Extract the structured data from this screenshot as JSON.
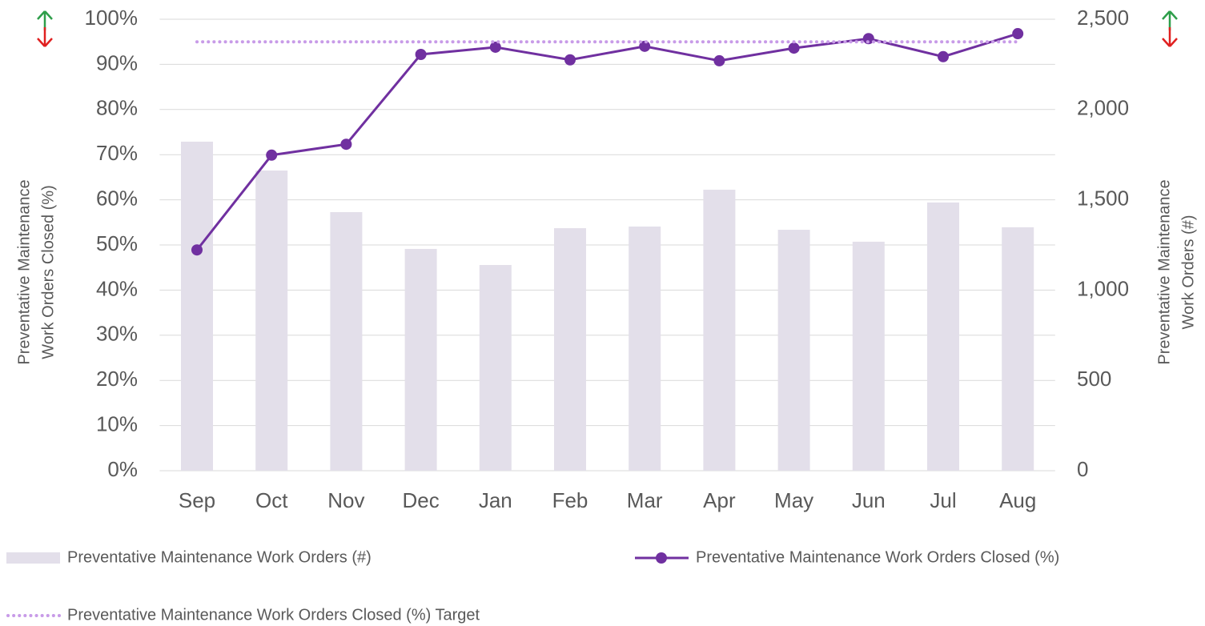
{
  "chart_data": {
    "type": "bar-line",
    "categories": [
      "Sep",
      "Oct",
      "Nov",
      "Dec",
      "Jan",
      "Feb",
      "Mar",
      "Apr",
      "May",
      "Jun",
      "Jul",
      "Aug"
    ],
    "series": [
      {
        "name": "Preventative Maintenance Work Orders (#)",
        "type": "bar",
        "axis": "y2",
        "color": "#e3dfea",
        "values": [
          1822,
          1662,
          1432,
          1228,
          1139,
          1343,
          1352,
          1556,
          1334,
          1268,
          1485,
          1348
        ]
      },
      {
        "name": "Preventative Maintenance Work Orders Closed (%)",
        "type": "line",
        "color": "#7030a0",
        "values": [
          48.9,
          69.9,
          72.3,
          92.2,
          93.8,
          91.0,
          94.0,
          90.8,
          93.6,
          95.7,
          91.7,
          96.8
        ]
      },
      {
        "name": "Preventative Maintenance Work Orders Closed (%) Target",
        "type": "dotted",
        "color": "#c89be8",
        "values": [
          95,
          95,
          95,
          95,
          95,
          95,
          95,
          95,
          95,
          95,
          95,
          95
        ]
      }
    ],
    "y_label": [
      "Preventative Maintenance",
      "Work Orders Closed (%)"
    ],
    "y2_label": [
      "Preventative Maintenance",
      "Work Orders (#)"
    ],
    "ylim": [
      0,
      100
    ],
    "yticks": [
      {
        "value": 0,
        "label": "0%"
      },
      {
        "value": 10,
        "label": "10%"
      },
      {
        "value": 20,
        "label": "20%"
      },
      {
        "value": 30,
        "label": "30%"
      },
      {
        "value": 40,
        "label": "40%"
      },
      {
        "value": 50,
        "label": "50%"
      },
      {
        "value": 60,
        "label": "60%"
      },
      {
        "value": 70,
        "label": "70%"
      },
      {
        "value": 80,
        "label": "80%"
      },
      {
        "value": 90,
        "label": "90%"
      },
      {
        "value": 100,
        "label": "100%"
      }
    ],
    "y2lim": [
      0,
      2500
    ],
    "y2ticks": [
      0,
      500,
      {
        "value": 1000,
        "label": "1,000"
      },
      {
        "value": 1500,
        "label": "1,500"
      },
      {
        "value": 2000,
        "label": "2,000"
      },
      {
        "value": 2500,
        "label": "2,500"
      }
    ],
    "grid": true
  }
}
